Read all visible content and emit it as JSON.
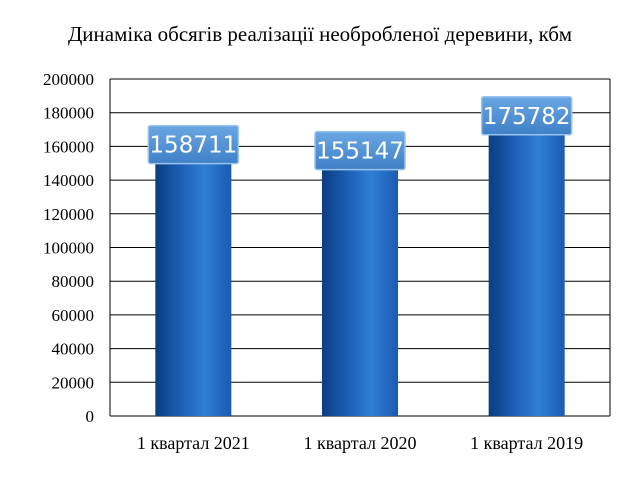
{
  "chart_data": {
    "type": "bar",
    "title": "Динаміка обсягів реалізації необробленої деревини, кбм",
    "categories": [
      "1 квартал 2021",
      "1 квартал 2020",
      "1 квартал 2019"
    ],
    "values": [
      158711,
      155147,
      175782
    ],
    "data_labels": [
      "158711",
      "155147",
      "175782"
    ],
    "ylim": [
      0,
      200000
    ],
    "yticks": [
      "0",
      "20000",
      "40000",
      "60000",
      "80000",
      "100000",
      "120000",
      "140000",
      "160000",
      "180000",
      "200000"
    ],
    "xlabel": "",
    "ylabel": "",
    "grid": true,
    "legend": "none",
    "colors": {
      "bar_light": "#2f7fd6",
      "bar_dark": "#0b3d80",
      "label_box": "#4f90d6",
      "label_box_border": "#9cc3ec"
    }
  }
}
